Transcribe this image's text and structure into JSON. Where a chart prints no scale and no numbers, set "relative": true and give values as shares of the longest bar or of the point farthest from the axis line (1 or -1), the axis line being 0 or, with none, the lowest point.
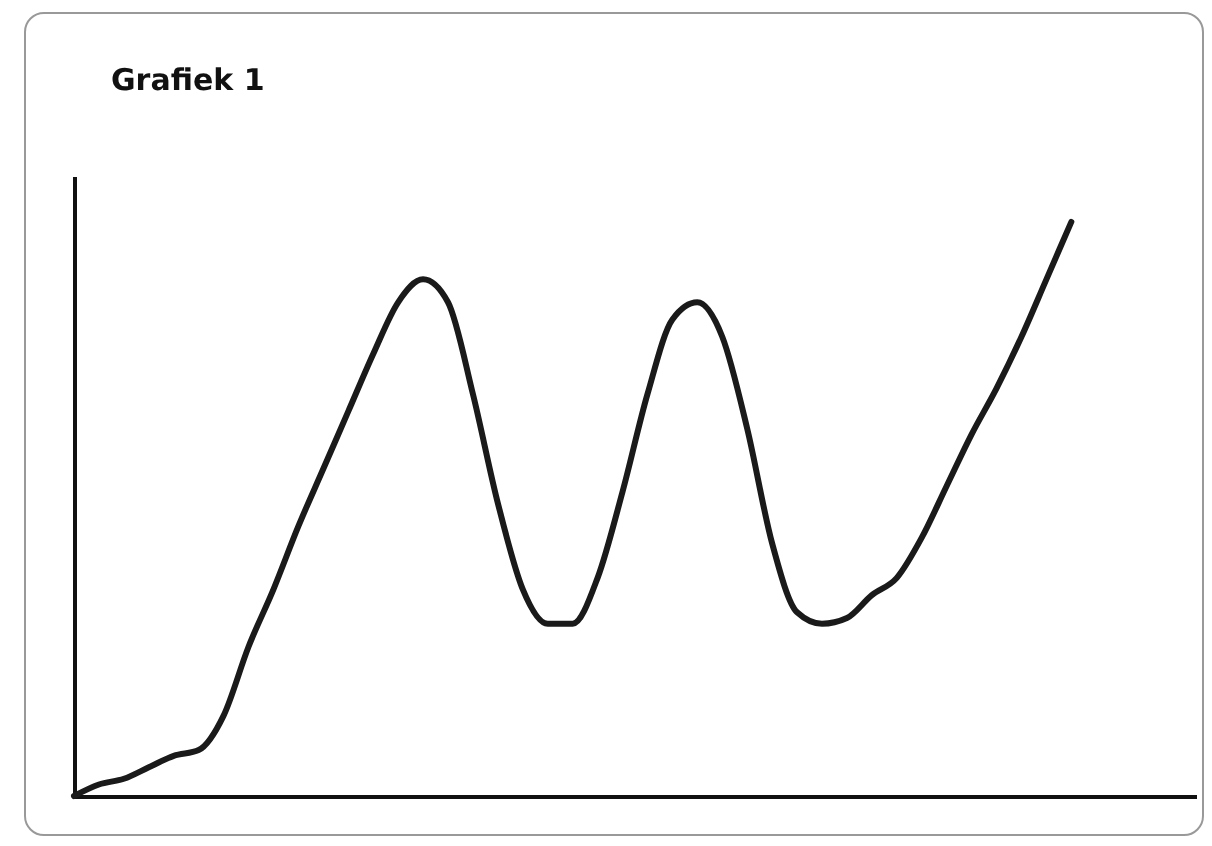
{
  "chart_data": {
    "type": "line",
    "title": "Grafiek 1",
    "relative": true,
    "categories": [
      null,
      null,
      null,
      null,
      null,
      null,
      null,
      null,
      null,
      null,
      null,
      null,
      null,
      null,
      null,
      null,
      null,
      null,
      null,
      null,
      null,
      null,
      null,
      null,
      null,
      null,
      null,
      null,
      null,
      null,
      null,
      null,
      null,
      null,
      null,
      null,
      null,
      null,
      null,
      null,
      null,
      null,
      null,
      null,
      null,
      null
    ],
    "values": [
      0,
      0.02,
      0.03,
      0.05,
      0.07,
      0.08,
      0.14,
      0.26,
      0.36,
      0.47,
      0.57,
      0.67,
      0.77,
      0.86,
      0.9,
      0.86,
      0.7,
      0.51,
      0.36,
      0.3,
      0.3,
      0.38,
      0.53,
      0.7,
      0.83,
      0.86,
      0.8,
      0.64,
      0.44,
      0.32,
      0.3,
      0.31,
      0.35,
      0.38,
      0.45,
      0.54,
      0.63,
      0.71,
      0.8,
      0.9,
      1,
      null,
      null,
      null,
      null,
      null
    ],
    "color": "#1a1a1a",
    "marker": "none",
    "line_style": "solid",
    "grid": false
  }
}
